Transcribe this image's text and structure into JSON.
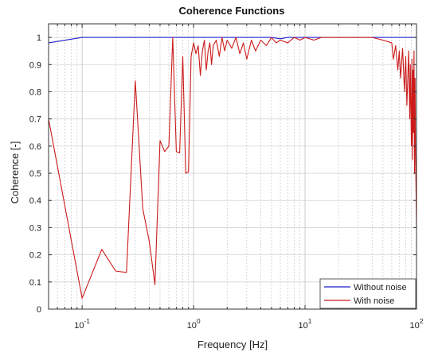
{
  "chart_data": {
    "type": "line",
    "title": "Coherence Functions",
    "xlabel": "Frequency [Hz]",
    "ylabel": "Coherence [-]",
    "xscale": "log",
    "xlim": [
      0.05,
      100
    ],
    "ylim": [
      0,
      1.05
    ],
    "grid": true,
    "legend_position": "bottom-right",
    "x_ticks": [
      {
        "value": 0.1,
        "base": "10",
        "exp": "-1"
      },
      {
        "value": 1,
        "base": "10",
        "exp": "0"
      },
      {
        "value": 10,
        "base": "10",
        "exp": "1"
      },
      {
        "value": 100,
        "base": "10",
        "exp": "2"
      }
    ],
    "y_ticks": [
      {
        "value": 0,
        "label": "0"
      },
      {
        "value": 0.1,
        "label": "0.1"
      },
      {
        "value": 0.2,
        "label": "0.2"
      },
      {
        "value": 0.3,
        "label": "0.3"
      },
      {
        "value": 0.4,
        "label": "0.4"
      },
      {
        "value": 0.5,
        "label": "0.5"
      },
      {
        "value": 0.6,
        "label": "0.6"
      },
      {
        "value": 0.7,
        "label": "0.7"
      },
      {
        "value": 0.8,
        "label": "0.8"
      },
      {
        "value": 0.9,
        "label": "0.9"
      },
      {
        "value": 1,
        "label": "1"
      }
    ],
    "series": [
      {
        "name": "Without noise",
        "color": "#1f1fd0",
        "x": [
          0.05,
          0.1,
          0.3,
          1,
          3,
          5,
          6,
          7,
          8,
          10,
          20,
          50,
          100
        ],
        "y": [
          0.98,
          1.0,
          1.0,
          1.0,
          1.0,
          1.0,
          0.995,
          1.0,
          1.0,
          1.0,
          1.0,
          1.0,
          1.0
        ]
      },
      {
        "name": "With noise",
        "color": "#cc1a1a",
        "x": [
          0.05,
          0.1,
          0.15,
          0.2,
          0.25,
          0.3,
          0.35,
          0.4,
          0.45,
          0.5,
          0.55,
          0.6,
          0.65,
          0.7,
          0.75,
          0.8,
          0.85,
          0.9,
          0.95,
          1.0,
          1.05,
          1.1,
          1.15,
          1.2,
          1.25,
          1.3,
          1.35,
          1.4,
          1.45,
          1.5,
          1.6,
          1.7,
          1.8,
          1.9,
          2.0,
          2.2,
          2.4,
          2.6,
          2.8,
          3.0,
          3.3,
          3.6,
          4.0,
          4.5,
          5.0,
          5.5,
          6.0,
          7.0,
          8.0,
          9.0,
          10,
          12,
          14,
          17,
          20,
          25,
          30,
          40,
          50,
          60,
          62,
          65,
          68,
          70,
          72,
          75,
          78,
          80,
          82,
          85,
          87,
          88,
          90,
          91,
          92,
          93,
          94,
          95,
          96,
          97,
          98,
          99,
          100
        ],
        "y": [
          0.7,
          0.04,
          0.22,
          0.14,
          0.135,
          0.84,
          0.37,
          0.25,
          0.09,
          0.62,
          0.58,
          0.6,
          1.0,
          0.58,
          0.575,
          0.93,
          0.5,
          0.505,
          0.93,
          0.98,
          0.94,
          0.97,
          0.86,
          0.95,
          0.99,
          0.88,
          0.95,
          0.98,
          0.9,
          0.97,
          0.99,
          0.93,
          1.0,
          0.95,
          0.99,
          0.96,
          1.0,
          0.94,
          0.98,
          0.92,
          0.99,
          0.95,
          0.99,
          0.97,
          1.0,
          0.98,
          0.99,
          0.98,
          1.0,
          0.99,
          1.0,
          0.99,
          1.0,
          1.0,
          1.0,
          1.0,
          1.0,
          1.0,
          0.99,
          0.98,
          0.92,
          0.97,
          0.88,
          0.95,
          0.85,
          0.96,
          0.8,
          0.93,
          0.75,
          0.95,
          0.7,
          0.9,
          0.6,
          0.92,
          0.55,
          0.88,
          0.65,
          0.95,
          0.5,
          0.85,
          0.58,
          0.45,
          0.3
        ]
      }
    ]
  }
}
